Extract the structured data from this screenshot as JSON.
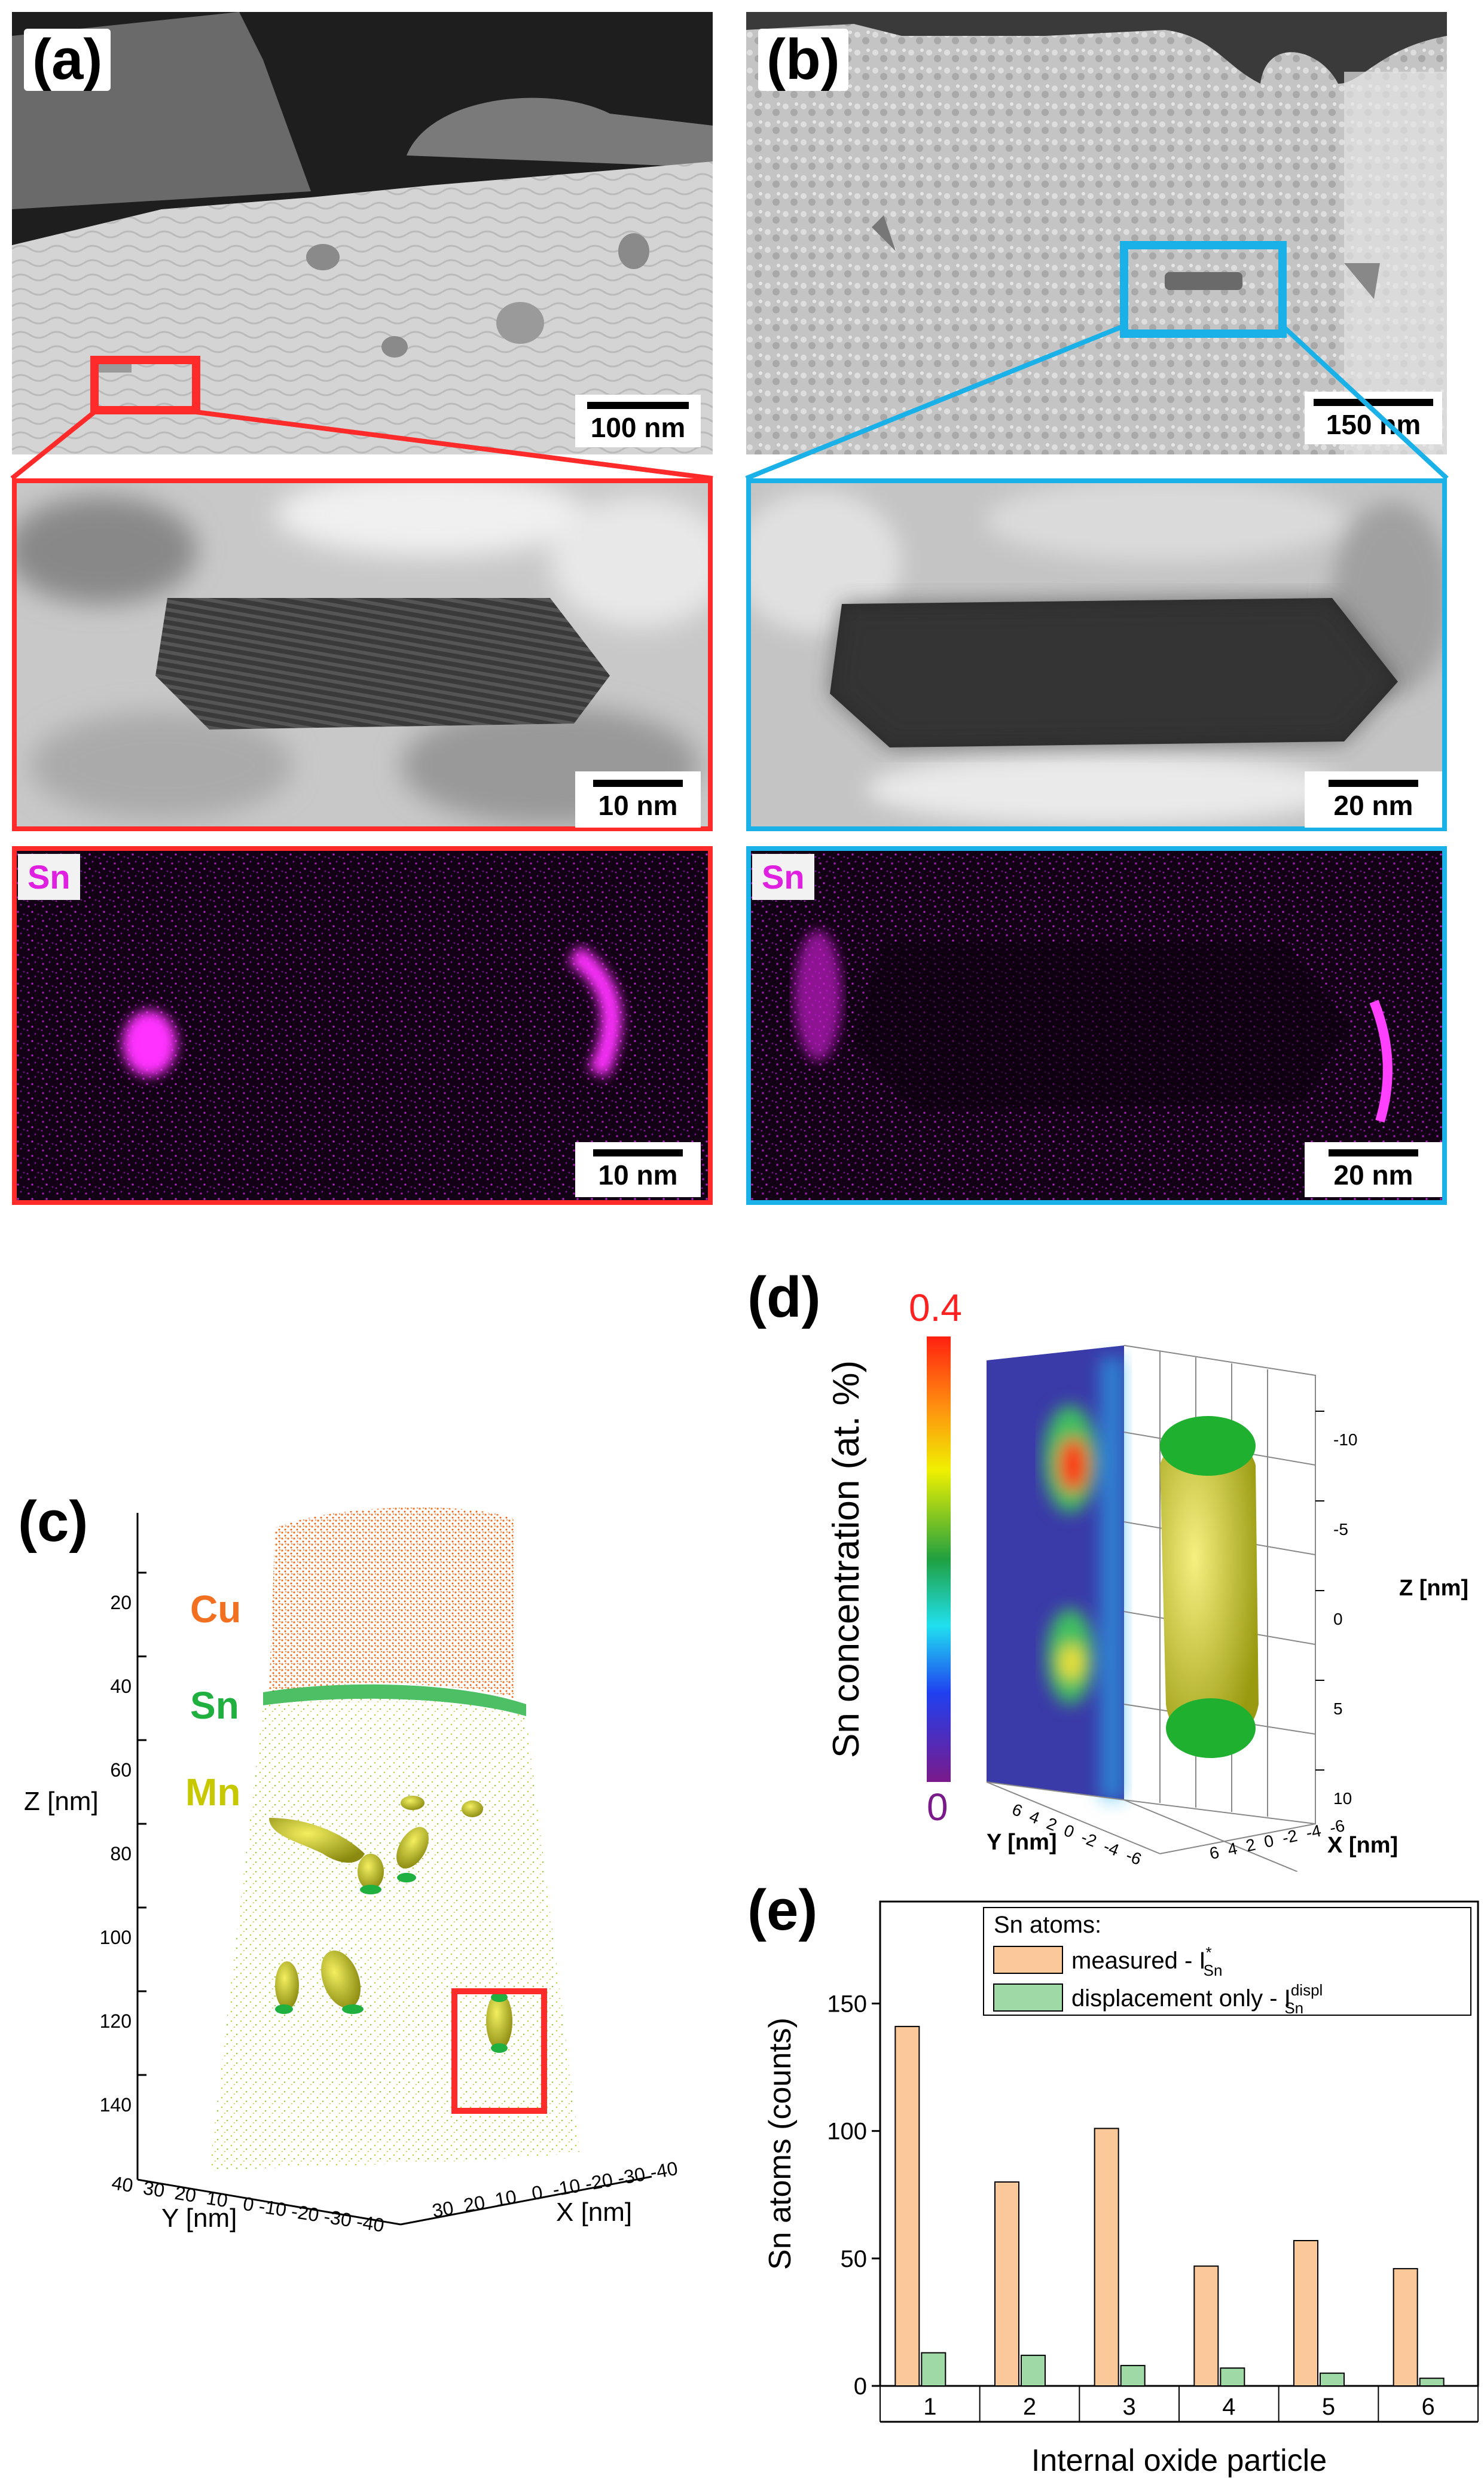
{
  "panels": {
    "a": {
      "letter": "(a)",
      "scale_top": "100 nm",
      "scale_mid": "10 nm",
      "scale_bot": "10 nm",
      "element": "Sn"
    },
    "b": {
      "letter": "(b)",
      "scale_top": "150 nm",
      "scale_mid": "20 nm",
      "scale_bot": "20 nm",
      "element": "Sn"
    },
    "c": {
      "letter": "(c)",
      "labels": {
        "cu": "Cu",
        "sn": "Sn",
        "mn": "Mn"
      },
      "z_axis_title": "Z [nm]",
      "z_ticks": [
        "20",
        "40",
        "60",
        "80",
        "100",
        "120",
        "140"
      ],
      "y_axis_title": "Y [nm]",
      "y_ticks": "40  30  20  10   0 -10 -20 -30 -40",
      "x_axis_title": "X [nm]",
      "x_ticks": "30  20  10   0  -10 -20 -30 -40"
    },
    "d": {
      "letter": "(d)",
      "colorbar_title": "Sn concentration (at. %)",
      "colorbar_max": "0.4",
      "colorbar_min": "0",
      "z_ticks": [
        "-10",
        "-5",
        "0",
        "5",
        "10"
      ],
      "z_title": "Z [nm]",
      "y_ticks": "6  4  2  0  -2  -4  -6",
      "y_title": "Y [nm]",
      "x_ticks": "6  4  2  0  -2  -4  -6",
      "x_title": "X [nm]"
    },
    "e": {
      "letter": "(e)"
    }
  },
  "colors": {
    "frame_red": "#ff2a2a",
    "frame_blue": "#1ab0e8",
    "measured": "#fbc89a",
    "displacement": "#9fd9a5",
    "cu": "#f37021",
    "sn": "#20b040",
    "mn": "#c8c800"
  },
  "chart_data": {
    "type": "bar",
    "legend_title": "Sn atoms:",
    "legend_placement": "top-right",
    "categories": [
      "1",
      "2",
      "3",
      "4",
      "5",
      "6"
    ],
    "series": [
      {
        "name": "measured - I",
        "sup": "*",
        "sub": "Sn",
        "values": [
          141,
          80,
          101,
          47,
          57,
          46
        ]
      },
      {
        "name": "displacement only - I",
        "sup": "displ",
        "sub": "Sn",
        "values": [
          13,
          12,
          8,
          7,
          5,
          3
        ]
      }
    ],
    "xlabel": "Internal oxide particle",
    "ylabel": "Sn atoms (counts)",
    "ylim": [
      0,
      190
    ],
    "yticks": [
      0,
      50,
      100,
      150
    ]
  }
}
